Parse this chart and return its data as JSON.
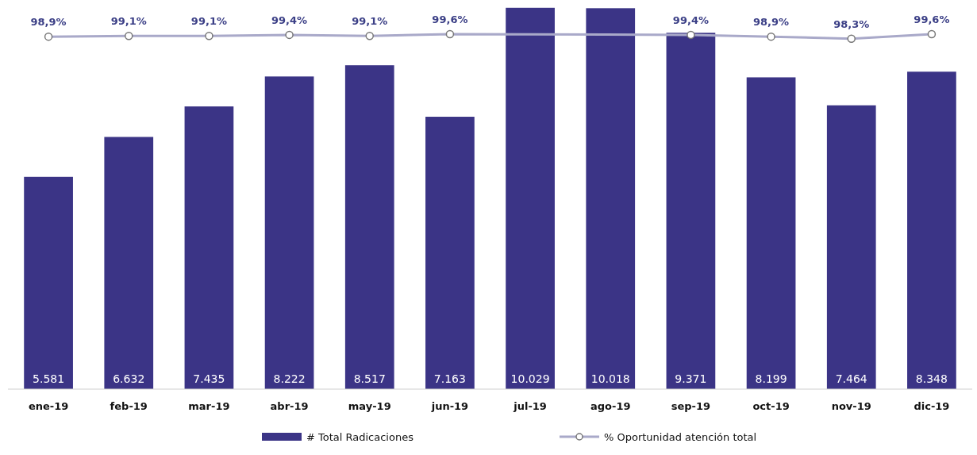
{
  "chart_data": {
    "type": "bar",
    "categories": [
      "ene-19",
      "feb-19",
      "mar-19",
      "abr-19",
      "may-19",
      "jun-19",
      "jul-19",
      "ago-19",
      "sep-19",
      "oct-19",
      "nov-19",
      "dic-19"
    ],
    "legend": "bottom",
    "tick_labels": "x",
    "series": [
      {
        "name": "# Total Radicaciones",
        "color": "#3b3486",
        "values": [
          5581,
          6632,
          7435,
          8222,
          8517,
          7163,
          10029,
          10018,
          9371,
          8199,
          7464,
          8348
        ],
        "value_labels": [
          "5.581",
          "6.632",
          "7.435",
          "8.222",
          "8.517",
          "7.163",
          "10.029",
          "10.018",
          "9.371",
          "8.199",
          "7.464",
          "8.348"
        ]
      },
      {
        "name": "% Oportunidad atención total",
        "type": "line",
        "axis": "y2",
        "color": "#a9a9c9",
        "marker": "circle",
        "values": [
          98.9,
          99.1,
          99.1,
          99.4,
          99.1,
          99.6,
          null,
          null,
          99.4,
          98.9,
          98.3,
          99.6
        ],
        "value_labels": [
          "98,9%",
          "99,1%",
          "99,1%",
          "99,4%",
          "99,1%",
          "99,6%",
          null,
          null,
          "99,4%",
          "98,9%",
          "98,3%",
          "99,6%"
        ]
      }
    ]
  }
}
